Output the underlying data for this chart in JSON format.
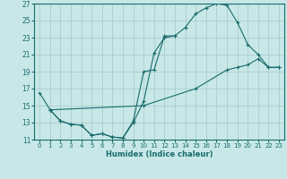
{
  "xlabel": "Humidex (Indice chaleur)",
  "bg_color": "#c8e8e8",
  "grid_color": "#a8c8c8",
  "line_color": "#1a6b6b",
  "xlim": [
    -0.5,
    23.5
  ],
  "ylim": [
    11,
    27
  ],
  "xticks": [
    0,
    1,
    2,
    3,
    4,
    5,
    6,
    7,
    8,
    9,
    10,
    11,
    12,
    13,
    14,
    15,
    16,
    17,
    18,
    19,
    20,
    21,
    22,
    23
  ],
  "yticks": [
    11,
    13,
    15,
    17,
    19,
    21,
    23,
    25,
    27
  ],
  "line1_x": [
    0,
    1,
    2,
    3,
    4,
    5,
    6,
    7,
    8,
    9,
    10,
    11,
    12,
    13
  ],
  "line1_y": [
    16.5,
    14.5,
    13.2,
    12.8,
    12.7,
    11.5,
    11.7,
    11.3,
    11.2,
    13.2,
    19.0,
    19.2,
    23.2,
    23.2
  ],
  "line2_x": [
    1,
    2,
    3,
    4,
    5,
    6,
    7,
    8,
    9,
    10,
    11,
    12,
    13,
    14,
    15,
    16,
    17,
    18,
    19,
    20,
    21,
    22,
    23
  ],
  "line2_y": [
    14.5,
    13.2,
    12.8,
    12.7,
    11.5,
    11.7,
    11.3,
    11.2,
    13.0,
    15.5,
    21.2,
    23.0,
    23.2,
    24.2,
    25.8,
    26.5,
    27.0,
    26.8,
    24.8,
    22.2,
    21.0,
    19.5,
    19.5
  ],
  "line3_x": [
    1,
    10,
    15,
    18,
    19,
    20,
    21,
    22,
    23
  ],
  "line3_y": [
    14.5,
    15.0,
    17.0,
    19.2,
    19.5,
    19.8,
    20.5,
    19.5,
    19.5
  ]
}
